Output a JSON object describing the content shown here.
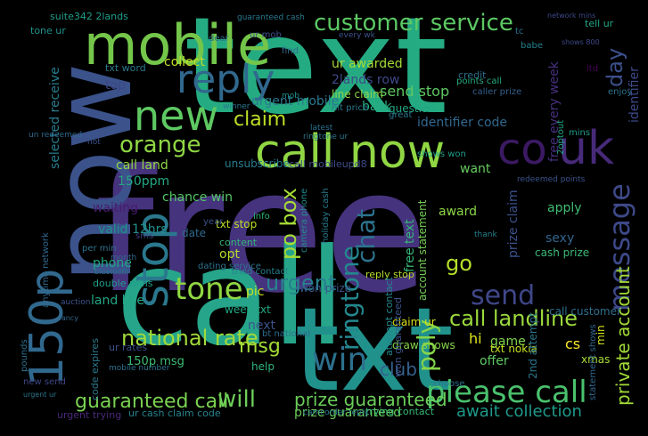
{
  "image": {
    "background": "#000000",
    "palette": {
      "dark-purple": "#440154",
      "indigo": "#3b528b",
      "blue": "#31688e",
      "teal": "#21918c",
      "green": "#35b779",
      "lime": "#90d743",
      "yellow": "#fde725"
    }
  },
  "words": [
    {
      "text": "free",
      "color": "#46337e"
    },
    {
      "text": "text",
      "color": "#25ab82"
    },
    {
      "text": "call",
      "color": "#26a58a"
    },
    {
      "text": "txt",
      "color": "#21918c"
    },
    {
      "text": "now",
      "color": "#3b528b"
    },
    {
      "text": "mobile",
      "color": "#74c64a"
    },
    {
      "text": "call now",
      "color": "#90d743"
    },
    {
      "text": "reply",
      "color": "#31688e"
    },
    {
      "text": "new",
      "color": "#5ec962"
    },
    {
      "text": "co",
      "color": "#3b1a63"
    },
    {
      "text": "uk",
      "color": "#472a7a"
    },
    {
      "text": "stop",
      "color": "#2a788e"
    },
    {
      "text": "150p",
      "color": "#31688e"
    },
    {
      "text": "please call",
      "color": "#4ac16d"
    },
    {
      "text": "customer service",
      "color": "#5cc863"
    },
    {
      "text": "message",
      "color": "#3e4989"
    },
    {
      "text": "win",
      "color": "#2c718e"
    },
    {
      "text": "tone",
      "color": "#90d743"
    },
    {
      "text": "send",
      "color": "#3f4788"
    },
    {
      "text": "claim",
      "color": "#bddf26"
    },
    {
      "text": "orange",
      "color": "#8fd744"
    },
    {
      "text": "national rate",
      "color": "#a0da39"
    },
    {
      "text": "ringtone",
      "color": "#23888e"
    },
    {
      "text": "guaranteed call",
      "color": "#7ad151"
    },
    {
      "text": "poly",
      "color": "#86d549"
    },
    {
      "text": "will",
      "color": "#6ece58"
    },
    {
      "text": "urgent",
      "color": "#26828e"
    },
    {
      "text": "chat",
      "color": "#2c738e"
    },
    {
      "text": "po box",
      "color": "#a5db36"
    },
    {
      "text": "msg",
      "color": "#a2da37"
    },
    {
      "text": "day",
      "color": "#3c508b"
    },
    {
      "text": "call landline",
      "color": "#9bd93c"
    },
    {
      "text": "prize guaranteed",
      "color": "#6ccd5a"
    },
    {
      "text": "go",
      "color": "#b5de2b"
    },
    {
      "text": "club",
      "color": "#34618d"
    },
    {
      "text": "private account",
      "color": "#a2da37"
    },
    {
      "text": "await collection",
      "color": "#1f9a8a"
    },
    {
      "text": "selected receive",
      "color": "#287c8e"
    },
    {
      "text": "chance win",
      "color": "#55c667"
    },
    {
      "text": "call land",
      "color": "#90d743"
    },
    {
      "text": "150ppm",
      "color": "#23a983"
    },
    {
      "text": "send stop",
      "color": "#5ec962"
    },
    {
      "text": "collect",
      "color": "#c2df23"
    },
    {
      "text": "urgent mobile",
      "color": "#2a788e"
    },
    {
      "text": "identifier code",
      "color": "#31688e"
    },
    {
      "text": "ur awarded",
      "color": "#a5db36"
    },
    {
      "text": "2lands row",
      "color": "#3e4989"
    },
    {
      "text": "line claim",
      "color": "#8ed645"
    },
    {
      "text": "free every week",
      "color": "#46307e"
    },
    {
      "text": "suite342 2lands",
      "color": "#1f9e89"
    },
    {
      "text": "land line",
      "color": "#22a785"
    },
    {
      "text": "phone",
      "color": "#22a884"
    },
    {
      "text": "valid 12hrs",
      "color": "#21918c"
    },
    {
      "text": "150p msg",
      "color": "#3fbc73"
    },
    {
      "text": "hi",
      "color": "#dde318"
    },
    {
      "text": "cs",
      "color": "#fde725"
    },
    {
      "text": "game",
      "color": "#7fd34e"
    },
    {
      "text": "offer",
      "color": "#5ec962"
    },
    {
      "text": "award",
      "color": "#8bd646"
    },
    {
      "text": "prize claim",
      "color": "#3b528b"
    },
    {
      "text": "free text",
      "color": "#35b779"
    },
    {
      "text": "account statement",
      "color": "#73d056"
    },
    {
      "text": "sexy",
      "color": "#32648e"
    },
    {
      "text": "apply",
      "color": "#40bd72"
    },
    {
      "text": "cash prize",
      "color": "#3aba76"
    },
    {
      "text": "want",
      "color": "#65cb5e"
    },
    {
      "text": "unsubscribe",
      "color": "#287d8e"
    },
    {
      "text": "call mobileupd8",
      "color": "#3e4c8a"
    },
    {
      "text": "txt stop",
      "color": "#bddf26"
    },
    {
      "text": "waiting",
      "color": "#481b6d"
    },
    {
      "text": "opt",
      "color": "#b2dd2d"
    },
    {
      "text": "date",
      "color": "#2f6b8e"
    },
    {
      "text": "pic",
      "color": "#cae11f"
    },
    {
      "text": "next",
      "color": "#3b528b"
    },
    {
      "text": "help",
      "color": "#31b57b"
    },
    {
      "text": "txt nokia",
      "color": "#c5e021"
    },
    {
      "text": "2nd attempt",
      "color": "#2a778e"
    },
    {
      "text": "xmas",
      "color": "#a8db34"
    },
    {
      "text": "statement shows",
      "color": "#31688e"
    },
    {
      "text": "min",
      "color": "#d2e21b"
    },
    {
      "text": "draw shows",
      "color": "#86d549"
    },
    {
      "text": "claim ur",
      "color": "#d8e219"
    },
    {
      "text": "won prize",
      "color": "#39558c"
    },
    {
      "text": "reply stop",
      "color": "#b8de29"
    },
    {
      "text": "tried contact",
      "color": "#27808e"
    },
    {
      "text": "content",
      "color": "#35b779"
    },
    {
      "text": "question",
      "color": "#22a785"
    },
    {
      "text": "identifier",
      "color": "#3e4989"
    },
    {
      "text": "credit",
      "color": "#2d708e"
    },
    {
      "text": "back",
      "color": "#26ad81"
    },
    {
      "text": "top",
      "color": "#3f4788"
    },
    {
      "text": "txt word",
      "color": "#2a788e"
    },
    {
      "text": "tone ur",
      "color": "#21918c"
    },
    {
      "text": "call customer",
      "color": "#2e6f8e"
    },
    {
      "text": "week txt",
      "color": "#22a884"
    },
    {
      "text": "prize guaranteed",
      "color": "#6ccd5a"
    },
    {
      "text": "ur cash claim code",
      "color": "#26828e"
    },
    {
      "text": "code expires",
      "color": "#2a788e"
    },
    {
      "text": "ur rates",
      "color": "#3b528b"
    },
    {
      "text": "double mins",
      "color": "#1f9e89"
    },
    {
      "text": "mobile number",
      "color": "#2c728e"
    },
    {
      "text": "urgent trying",
      "color": "#482878"
    },
    {
      "text": "trying contact",
      "color": "#3aba76"
    },
    {
      "text": "camcorder reply",
      "color": "#2a768e"
    },
    {
      "text": "attempt contact",
      "color": "#23898e"
    },
    {
      "text": "won guaranteed",
      "color": "#3b528b"
    },
    {
      "text": "holiday cash",
      "color": "#287c8e"
    },
    {
      "text": "dating service",
      "color": "#2c738e"
    },
    {
      "text": "camera phone",
      "color": "#238a8d"
    },
    {
      "text": "shows won",
      "color": "#1f9f88"
    },
    {
      "text": "points call",
      "color": "#26ad81"
    },
    {
      "text": "caller prize",
      "color": "#35608d"
    },
    {
      "text": "hit price",
      "color": "#2a788e"
    },
    {
      "text": "redeemed points",
      "color": "#3b528b"
    },
    {
      "text": "choose",
      "color": "#2c718e"
    },
    {
      "text": "anytime network",
      "color": "#31688e"
    },
    {
      "text": "pounds",
      "color": "#2d708e"
    },
    {
      "text": "bt national",
      "color": "#2e6e8e"
    },
    {
      "text": "2optout",
      "color": "#22a785"
    },
    {
      "text": "info",
      "color": "#32b67a"
    },
    {
      "text": "year",
      "color": "#3b528b"
    },
    {
      "text": "sms",
      "color": "#433e85"
    },
    {
      "text": "ltd",
      "color": "#440154"
    },
    {
      "text": "enjoy",
      "color": "#2c728e"
    },
    {
      "text": "babe",
      "color": "#26828e"
    },
    {
      "text": "great",
      "color": "#2a788e"
    },
    {
      "text": "mins",
      "color": "#1f9a8a"
    },
    {
      "text": "tell ur",
      "color": "#22a785"
    },
    {
      "text": "every wk",
      "color": "#3b528b"
    },
    {
      "text": "find",
      "color": "#31688e"
    },
    {
      "text": "dear",
      "color": "#2c728e"
    },
    {
      "text": "guaranteed cash",
      "color": "#29798e"
    },
    {
      "text": "network mins",
      "color": "#3e4989"
    },
    {
      "text": "winner",
      "color": "#2a788e"
    },
    {
      "text": "per min",
      "color": "#2c738e"
    },
    {
      "text": "month",
      "color": "#31688e"
    },
    {
      "text": "un redeemed",
      "color": "#31688e"
    },
    {
      "text": "hot",
      "color": "#3b528b"
    },
    {
      "text": "bluetooth",
      "color": "#2c728e"
    },
    {
      "text": "auction",
      "color": "#3b528b"
    },
    {
      "text": "fancy",
      "color": "#31688e"
    },
    {
      "text": "new send",
      "color": "#3f4788"
    },
    {
      "text": "urgent ur",
      "color": "#2a768e"
    },
    {
      "text": "mob",
      "color": "#21918c"
    },
    {
      "text": "thank",
      "color": "#26828e"
    },
    {
      "text": "tc",
      "color": "#2c718e"
    },
    {
      "text": "ur mob",
      "color": "#3b528b"
    },
    {
      "text": "latest",
      "color": "#2c738e"
    },
    {
      "text": "ringtone ur",
      "color": "#2a788e"
    },
    {
      "text": "shows 800",
      "color": "#3e4989"
    }
  ]
}
